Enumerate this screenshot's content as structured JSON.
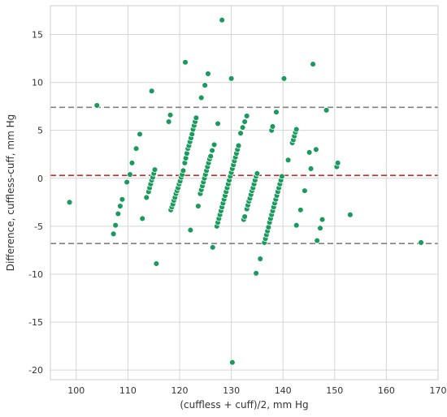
{
  "chart_data": {
    "type": "scatter",
    "title": "",
    "xlabel": "(cuffless + cuff)/2, mm Hg",
    "ylabel": "Difference, cuffless-cuff, mm Hg",
    "xlim": [
      95,
      170
    ],
    "ylim": [
      -21,
      18
    ],
    "x_ticks": [
      100,
      110,
      120,
      130,
      140,
      150,
      160,
      170
    ],
    "y_ticks": [
      -20,
      -15,
      -10,
      -5,
      0,
      5,
      10,
      15
    ],
    "grid": true,
    "point_color": "#1a9a5c",
    "mean_line": {
      "value": 0.3,
      "color": "#d62728",
      "style": "dashed"
    },
    "limits_of_agreement": {
      "values": [
        7.4,
        -6.8
      ],
      "color": "#808080",
      "style": "dashed"
    },
    "points": [
      [
        98.7,
        -2.5
      ],
      [
        104.0,
        7.6
      ],
      [
        107.2,
        -5.8
      ],
      [
        107.6,
        -4.9
      ],
      [
        108.1,
        -3.7
      ],
      [
        108.5,
        -2.9
      ],
      [
        108.9,
        -2.2
      ],
      [
        109.8,
        -0.4
      ],
      [
        110.4,
        0.4
      ],
      [
        110.8,
        1.6
      ],
      [
        111.6,
        3.1
      ],
      [
        112.3,
        4.6
      ],
      [
        112.8,
        -4.2
      ],
      [
        113.6,
        -2.0
      ],
      [
        114.0,
        -1.4
      ],
      [
        114.2,
        -1.0
      ],
      [
        114.4,
        -0.6
      ],
      [
        114.6,
        -0.2
      ],
      [
        114.8,
        0.1
      ],
      [
        115.0,
        0.5
      ],
      [
        115.2,
        0.9
      ],
      [
        114.6,
        9.1
      ],
      [
        115.5,
        -8.9
      ],
      [
        117.9,
        5.9
      ],
      [
        118.2,
        6.6
      ],
      [
        118.3,
        -3.3
      ],
      [
        118.5,
        -3.0
      ],
      [
        118.7,
        -2.7
      ],
      [
        118.9,
        -2.3
      ],
      [
        119.1,
        -2.0
      ],
      [
        119.3,
        -1.6
      ],
      [
        119.5,
        -1.3
      ],
      [
        119.7,
        -1.0
      ],
      [
        119.9,
        -0.6
      ],
      [
        120.1,
        -0.3
      ],
      [
        120.3,
        0.1
      ],
      [
        120.5,
        0.4
      ],
      [
        120.7,
        0.8
      ],
      [
        121.0,
        1.6
      ],
      [
        121.2,
        2.1
      ],
      [
        121.4,
        2.6
      ],
      [
        121.6,
        3.1
      ],
      [
        121.8,
        3.4
      ],
      [
        122.0,
        3.8
      ],
      [
        122.2,
        4.2
      ],
      [
        122.4,
        4.6
      ],
      [
        122.6,
        5.1
      ],
      [
        122.8,
        5.5
      ],
      [
        123.0,
        5.9
      ],
      [
        123.2,
        6.3
      ],
      [
        121.1,
        12.1
      ],
      [
        122.1,
        -5.4
      ],
      [
        123.6,
        -2.9
      ],
      [
        124.0,
        -1.6
      ],
      [
        124.2,
        -1.2
      ],
      [
        124.4,
        -0.8
      ],
      [
        124.6,
        -0.4
      ],
      [
        124.8,
        0.0
      ],
      [
        125.0,
        0.4
      ],
      [
        125.2,
        0.8
      ],
      [
        125.4,
        1.2
      ],
      [
        125.6,
        1.6
      ],
      [
        125.8,
        2.0
      ],
      [
        126.0,
        2.3
      ],
      [
        126.3,
        2.9
      ],
      [
        126.7,
        3.5
      ],
      [
        124.2,
        8.4
      ],
      [
        124.9,
        9.7
      ],
      [
        125.5,
        10.9
      ],
      [
        126.4,
        -7.2
      ],
      [
        127.4,
        5.7
      ],
      [
        127.2,
        -5.0
      ],
      [
        127.4,
        -4.6
      ],
      [
        127.6,
        -4.2
      ],
      [
        127.8,
        -3.8
      ],
      [
        128.0,
        -3.4
      ],
      [
        128.2,
        -3.0
      ],
      [
        128.4,
        -2.6
      ],
      [
        128.6,
        -2.2
      ],
      [
        128.8,
        -1.8
      ],
      [
        129.0,
        -1.4
      ],
      [
        129.2,
        -1.0
      ],
      [
        129.4,
        -0.6
      ],
      [
        129.6,
        -0.2
      ],
      [
        129.8,
        0.2
      ],
      [
        130.0,
        0.6
      ],
      [
        130.2,
        1.0
      ],
      [
        130.4,
        1.4
      ],
      [
        130.6,
        1.8
      ],
      [
        130.8,
        2.2
      ],
      [
        131.0,
        2.6
      ],
      [
        131.2,
        3.0
      ],
      [
        131.4,
        3.4
      ],
      [
        128.2,
        16.5
      ],
      [
        130.0,
        10.4
      ],
      [
        130.2,
        -19.2
      ],
      [
        131.8,
        4.7
      ],
      [
        132.2,
        5.3
      ],
      [
        132.6,
        5.9
      ],
      [
        133.0,
        6.5
      ],
      [
        132.4,
        -4.3
      ],
      [
        132.6,
        -4.0
      ],
      [
        133.0,
        -3.2
      ],
      [
        133.2,
        -2.8
      ],
      [
        133.4,
        -2.4
      ],
      [
        133.6,
        -2.1
      ],
      [
        133.8,
        -1.7
      ],
      [
        134.0,
        -1.3
      ],
      [
        134.2,
        -1.0
      ],
      [
        134.4,
        -0.6
      ],
      [
        134.6,
        -0.2
      ],
      [
        134.8,
        0.2
      ],
      [
        135.0,
        0.5
      ],
      [
        134.8,
        -9.9
      ],
      [
        135.6,
        -8.4
      ],
      [
        136.4,
        -6.7
      ],
      [
        136.6,
        -6.3
      ],
      [
        136.8,
        -5.9
      ],
      [
        137.0,
        -5.5
      ],
      [
        137.2,
        -5.1
      ],
      [
        137.4,
        -4.6
      ],
      [
        137.6,
        -4.2
      ],
      [
        137.8,
        -3.8
      ],
      [
        138.0,
        -3.4
      ],
      [
        138.2,
        -3.0
      ],
      [
        138.4,
        -2.6
      ],
      [
        138.6,
        -2.2
      ],
      [
        138.8,
        -1.8
      ],
      [
        139.0,
        -1.4
      ],
      [
        139.2,
        -1.0
      ],
      [
        139.4,
        -0.6
      ],
      [
        139.6,
        -0.2
      ],
      [
        139.8,
        0.2
      ],
      [
        137.8,
        5.0
      ],
      [
        138.0,
        5.4
      ],
      [
        138.7,
        6.9
      ],
      [
        140.2,
        10.4
      ],
      [
        141.0,
        1.9
      ],
      [
        141.8,
        3.7
      ],
      [
        142.0,
        4.0
      ],
      [
        142.2,
        4.4
      ],
      [
        142.4,
        4.8
      ],
      [
        142.6,
        5.1
      ],
      [
        142.6,
        -4.9
      ],
      [
        143.4,
        -3.3
      ],
      [
        144.2,
        -1.3
      ],
      [
        145.1,
        2.7
      ],
      [
        145.4,
        1.0
      ],
      [
        145.8,
        11.9
      ],
      [
        146.4,
        3.0
      ],
      [
        146.6,
        -6.5
      ],
      [
        147.2,
        -5.2
      ],
      [
        147.6,
        -4.3
      ],
      [
        148.4,
        7.1
      ],
      [
        150.4,
        1.2
      ],
      [
        150.6,
        1.6
      ],
      [
        153.0,
        -3.8
      ],
      [
        166.7,
        -6.7
      ]
    ]
  }
}
